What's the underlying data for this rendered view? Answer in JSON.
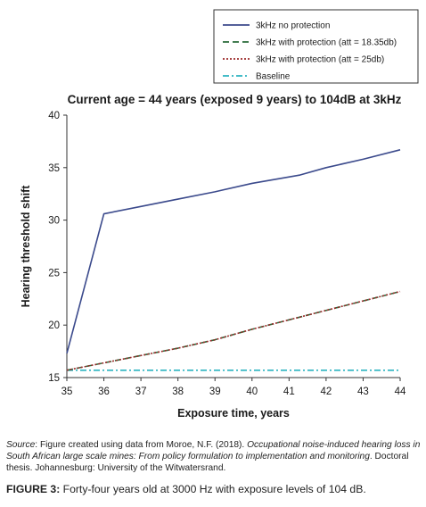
{
  "chart_data": {
    "type": "line",
    "title": "Current age = 44 years (exposed 9 years) to 104dB at 3kHz",
    "xlabel": "Exposure time, years",
    "ylabel": "Hearing threshold shift",
    "xlim": [
      35,
      44
    ],
    "ylim": [
      15,
      40
    ],
    "xticks": [
      "35",
      "36",
      "37",
      "38",
      "39",
      "40",
      "41",
      "42",
      "43",
      "44"
    ],
    "yticks": [
      "15",
      "20",
      "25",
      "30",
      "35",
      "40"
    ],
    "grid": false,
    "legend_position": "top-right, above plot",
    "series": [
      {
        "name": "3kHz no protection",
        "color": "#3b4a8c",
        "dash": "solid",
        "points": [
          [
            35,
            17.3
          ],
          [
            36,
            30.6
          ],
          [
            37,
            31.3
          ],
          [
            38,
            32.0
          ],
          [
            39,
            32.7
          ],
          [
            40,
            33.5
          ],
          [
            41.3,
            34.3
          ],
          [
            42,
            35.0
          ],
          [
            43,
            35.8
          ],
          [
            44,
            36.7
          ]
        ]
      },
      {
        "name": "3kHz with protection (att = 18.35db)",
        "color": "#2a6b3a",
        "dash": "dashed",
        "points": [
          [
            35,
            15.7
          ],
          [
            36,
            16.4
          ],
          [
            37,
            17.1
          ],
          [
            38,
            17.8
          ],
          [
            39,
            18.6
          ],
          [
            40,
            19.6
          ],
          [
            41,
            20.5
          ],
          [
            42,
            21.4
          ],
          [
            43,
            22.3
          ],
          [
            44,
            23.2
          ]
        ]
      },
      {
        "name": "3kHz with protection (att = 25db)",
        "color": "#9c2a2a",
        "dash": "dotted",
        "points": [
          [
            35,
            15.7
          ],
          [
            36,
            16.4
          ],
          [
            37,
            17.1
          ],
          [
            38,
            17.8
          ],
          [
            39,
            18.6
          ],
          [
            40,
            19.6
          ],
          [
            41,
            20.5
          ],
          [
            42,
            21.4
          ],
          [
            43,
            22.3
          ],
          [
            44,
            23.2
          ]
        ]
      },
      {
        "name": "Baseline",
        "color": "#2bb3c0",
        "dash": "dashdot",
        "points": [
          [
            35,
            15.7
          ],
          [
            44,
            15.7
          ]
        ]
      }
    ]
  },
  "source": {
    "lead": "Source",
    "text1": ": Figure created using data from Moroe, N.F. (2018). ",
    "title_italic": "Occupational noise-induced hearing loss in South African large scale mines: From policy formulation to implementation and monitoring",
    "text2": ". Doctoral thesis. Johannesburg: University of the Witwatersrand."
  },
  "caption": {
    "label": "FIGURE 3:",
    "text": " Forty-four years old at 3000 Hz with exposure levels of 104 dB."
  }
}
